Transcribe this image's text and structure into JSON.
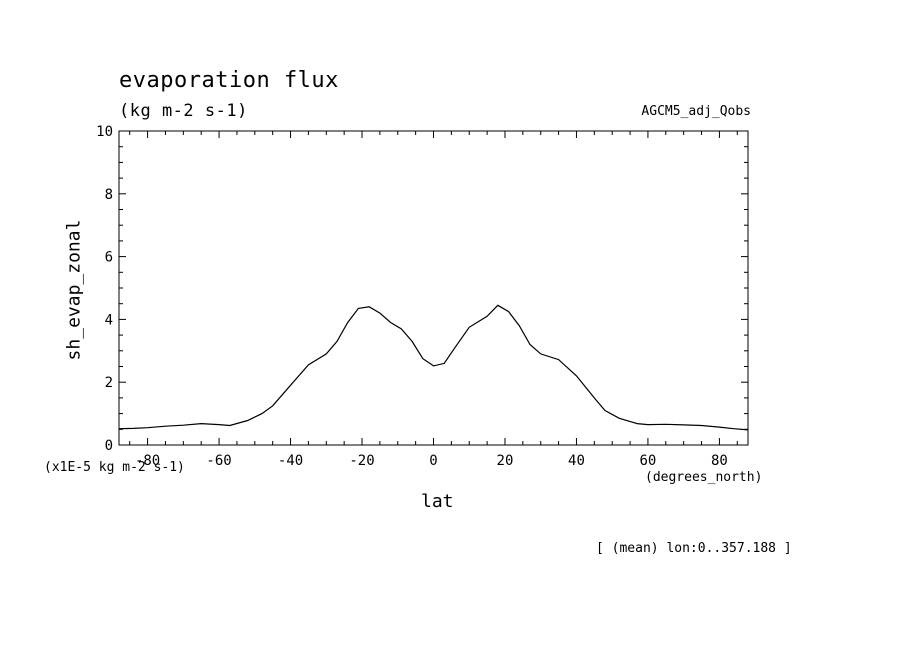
{
  "header": {
    "title": "evaporation flux",
    "units": "(kg m-2 s-1)",
    "dataset": "AGCM5_adj_Qobs"
  },
  "notes": {
    "scale_note": "(x1E-5 kg m-2 s-1)",
    "x_units": "(degrees_north)",
    "footnote": "[ (mean) lon:0..357.188 ]"
  },
  "chart_data": {
    "type": "line",
    "title": "evaporation flux",
    "xlabel": "lat",
    "ylabel": "sh_evap_zonal",
    "xlim": [
      -88,
      88
    ],
    "ylim": [
      0,
      10
    ],
    "x_ticks": [
      -80,
      -60,
      -40,
      -20,
      0,
      20,
      40,
      60,
      80
    ],
    "y_ticks": [
      0,
      2,
      4,
      6,
      8,
      10
    ],
    "grid": false,
    "line_color": "#000000",
    "series": [
      {
        "x": [
          -88,
          -84,
          -80,
          -75,
          -70,
          -65,
          -60,
          -57,
          -52,
          -48,
          -45,
          -40,
          -35,
          -30,
          -27,
          -24,
          -21,
          -18,
          -15,
          -12,
          -9,
          -6,
          -3,
          0,
          3,
          6,
          10,
          15,
          18,
          21,
          24,
          27,
          30,
          35,
          40,
          45,
          48,
          52,
          57,
          60,
          65,
          70,
          75,
          80,
          84,
          88
        ],
        "y": [
          0.52,
          0.53,
          0.55,
          0.6,
          0.63,
          0.68,
          0.65,
          0.62,
          0.78,
          1.0,
          1.25,
          1.9,
          2.55,
          2.9,
          3.3,
          3.9,
          4.35,
          4.4,
          4.2,
          3.9,
          3.7,
          3.3,
          2.75,
          2.52,
          2.6,
          3.1,
          3.75,
          4.1,
          4.45,
          4.25,
          3.8,
          3.2,
          2.9,
          2.72,
          2.2,
          1.5,
          1.1,
          0.85,
          0.68,
          0.65,
          0.66,
          0.64,
          0.62,
          0.57,
          0.52,
          0.48
        ]
      }
    ]
  }
}
